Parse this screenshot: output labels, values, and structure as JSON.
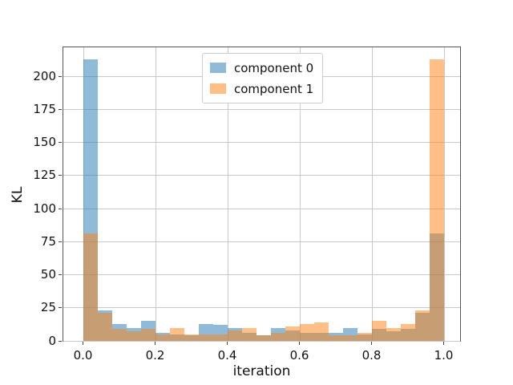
{
  "chart_data": {
    "type": "bar",
    "subtype": "overlaid-histogram",
    "title": "",
    "xlabel": "iteration",
    "ylabel": "KL",
    "bins": {
      "start": 0.0,
      "end": 1.0,
      "width": 0.04,
      "count": 25
    },
    "x_tick_labels": [
      "0.0",
      "0.2",
      "0.4",
      "0.6",
      "0.8",
      "1.0"
    ],
    "x_tick_values": [
      0.0,
      0.2,
      0.4,
      0.6,
      0.8,
      1.0
    ],
    "y_tick_values": [
      0,
      25,
      50,
      75,
      100,
      125,
      150,
      175,
      200
    ],
    "xlim": [
      -0.05,
      1.05
    ],
    "ylim": [
      0,
      222.5
    ],
    "grid": true,
    "legend_position": "upper center",
    "alpha": 0.5,
    "colors": {
      "component0": "#1f77b4",
      "component1": "#ff7f0e",
      "grid": "#c8c8c8",
      "spine": "#555555"
    },
    "series": [
      {
        "name": "component 0",
        "color": "#1f77b4",
        "values": [
          213,
          23,
          13,
          10,
          15,
          6,
          5,
          4,
          13,
          12,
          10,
          6,
          4,
          10,
          8,
          6,
          6,
          6,
          10,
          5,
          9,
          7,
          9,
          21,
          81
        ]
      },
      {
        "name": "component 1",
        "color": "#ff7f0e",
        "values": [
          81,
          21,
          9,
          7,
          9,
          5,
          10,
          5,
          5,
          5,
          8,
          10,
          4,
          6,
          11,
          13,
          14,
          4,
          4,
          6,
          15,
          10,
          13,
          23,
          213
        ]
      }
    ]
  }
}
